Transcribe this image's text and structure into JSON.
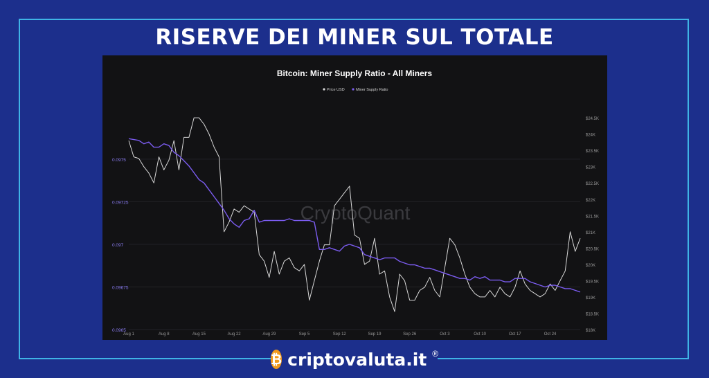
{
  "header": {
    "title": "RISERVE DEI MINER SUL TOTALE"
  },
  "brand": {
    "name": "criptovaluta.it",
    "registered": "®",
    "logo_icon": "bitcoin-coin-icon",
    "logo_color": "#f29a1c"
  },
  "colors": {
    "background": "#1c2f8c",
    "frame": "#3fb4e6",
    "panel": "#121214",
    "price_line": "#d9d9d9",
    "ratio_line": "#7b5cf0",
    "watermark": "#3a3a3e"
  },
  "chart_data": {
    "type": "line",
    "title": "Bitcoin: Miner Supply Ratio - All Miners",
    "watermark": "CryptoQuant",
    "legend_position": "top-center",
    "x_tick_labels": [
      "Aug 1",
      "Aug 8",
      "Aug 15",
      "Aug 22",
      "Aug 29",
      "Sep 5",
      "Sep 12",
      "Sep 19",
      "Sep 26",
      "Oct 3",
      "Oct 10",
      "Oct 17",
      "Oct 24"
    ],
    "x_range_days": [
      0,
      90
    ],
    "y_left": {
      "ticks": [
        "0.0975",
        "0.09725",
        "0.097",
        "0.09675",
        "0.0965"
      ],
      "range": [
        0.0965,
        0.0978
      ]
    },
    "y_right": {
      "ticks": [
        "$24.5K",
        "$24K",
        "$23.5K",
        "$23K",
        "$22.5K",
        "$22K",
        "$21.5K",
        "$21K",
        "$20.5K",
        "$20K",
        "$19.5K",
        "$19K",
        "$18.5K",
        "$18K"
      ],
      "range": [
        18000,
        24800
      ]
    },
    "series": [
      {
        "name": "Price USD",
        "axis": "right",
        "x": [
          0,
          1,
          2,
          3,
          4,
          5,
          6,
          7,
          8,
          9,
          10,
          11,
          12,
          13,
          14,
          15,
          16,
          17,
          18,
          19,
          20,
          21,
          22,
          23,
          24,
          25,
          26,
          27,
          28,
          29,
          30,
          31,
          32,
          33,
          34,
          35,
          36,
          37,
          38,
          39,
          40,
          41,
          42,
          43,
          44,
          45,
          46,
          47,
          48,
          49,
          50,
          51,
          52,
          53,
          54,
          55,
          56,
          57,
          58,
          59,
          60,
          61,
          62,
          63,
          64,
          65,
          66,
          67,
          68,
          69,
          70,
          71,
          72,
          73,
          74,
          75,
          76,
          77,
          78,
          79,
          80,
          81,
          82,
          83,
          84,
          85,
          86,
          87,
          88,
          89,
          90
        ],
        "values": [
          23800,
          23300,
          23250,
          23000,
          22800,
          22500,
          23300,
          22900,
          23200,
          23800,
          22900,
          23900,
          23900,
          24500,
          24500,
          24300,
          24000,
          23600,
          23300,
          21000,
          21300,
          21700,
          21600,
          21800,
          21700,
          21600,
          20300,
          20100,
          19600,
          20400,
          19700,
          20100,
          20200,
          19900,
          19800,
          20000,
          18900,
          19500,
          20100,
          20600,
          20600,
          21800,
          22000,
          22200,
          22400,
          20900,
          20800,
          20000,
          20100,
          20800,
          19700,
          19800,
          19000,
          18550,
          19700,
          19500,
          18900,
          18900,
          19200,
          19300,
          19600,
          19200,
          19000,
          19900,
          20800,
          20600,
          20200,
          19700,
          19300,
          19100,
          19000,
          19000,
          19200,
          19000,
          19300,
          19100,
          19000,
          19300,
          19800,
          19400,
          19200,
          19100,
          19000,
          19100,
          19400,
          19200,
          19500,
          19800,
          21000,
          20400,
          20800
        ]
      },
      {
        "name": "Miner Supply Ratio",
        "axis": "left",
        "x": [
          0,
          2,
          3,
          4,
          5,
          6,
          7,
          8,
          9,
          10,
          11,
          12,
          13,
          14,
          15,
          16,
          17,
          18,
          19,
          20,
          21,
          22,
          23,
          24,
          25,
          26,
          27,
          28,
          29,
          30,
          31,
          32,
          33,
          34,
          35,
          36,
          37,
          38,
          39,
          40,
          41,
          42,
          43,
          44,
          45,
          46,
          47,
          48,
          49,
          50,
          51,
          52,
          53,
          54,
          55,
          56,
          57,
          58,
          59,
          60,
          61,
          62,
          63,
          64,
          65,
          66,
          67,
          68,
          69,
          70,
          71,
          72,
          73,
          74,
          75,
          76,
          77,
          78,
          79,
          80,
          81,
          82,
          83,
          84,
          85,
          86,
          87,
          88,
          89,
          90
        ],
        "values": [
          0.09762,
          0.09761,
          0.09759,
          0.0976,
          0.09757,
          0.09757,
          0.09759,
          0.09758,
          0.09754,
          0.09752,
          0.09749,
          0.09746,
          0.09742,
          0.09738,
          0.09736,
          0.09732,
          0.09728,
          0.09724,
          0.0972,
          0.09715,
          0.09712,
          0.0971,
          0.09714,
          0.09715,
          0.0972,
          0.09713,
          0.09714,
          0.09714,
          0.09714,
          0.09714,
          0.09714,
          0.09715,
          0.09714,
          0.09714,
          0.09714,
          0.09714,
          0.09713,
          0.09697,
          0.09697,
          0.09698,
          0.09697,
          0.09696,
          0.09699,
          0.097,
          0.09699,
          0.09698,
          0.09694,
          0.09693,
          0.09692,
          0.09691,
          0.09692,
          0.09692,
          0.09692,
          0.0969,
          0.09689,
          0.09688,
          0.09688,
          0.09687,
          0.09686,
          0.09686,
          0.09685,
          0.09684,
          0.09683,
          0.09682,
          0.09681,
          0.0968,
          0.0968,
          0.09679,
          0.09681,
          0.0968,
          0.09681,
          0.09679,
          0.09679,
          0.09679,
          0.09678,
          0.09678,
          0.0968,
          0.0968,
          0.0968,
          0.09678,
          0.09677,
          0.09676,
          0.09675,
          0.09676,
          0.09676,
          0.09675,
          0.09674,
          0.09674,
          0.09673,
          0.09672
        ]
      }
    ]
  }
}
